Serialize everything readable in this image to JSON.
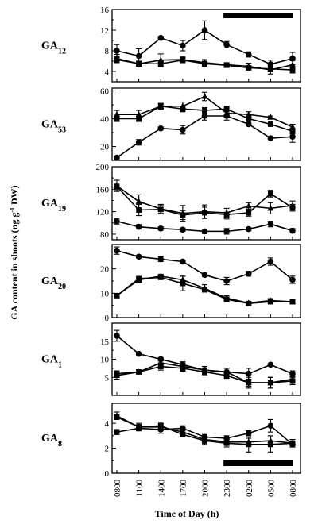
{
  "chart_data": {
    "type": "line",
    "xlabel": "Time of Day (h)",
    "ylabel": "GA content in shoots (ng g",
    "ylabel_sup": "-1",
    "ylabel_tail": " DW)",
    "x_ticks": [
      "0800",
      "1100",
      "1400",
      "1700",
      "2000",
      "2300",
      "0200",
      "0500",
      "0800"
    ],
    "dark_period": {
      "start": "2300",
      "end": "0800"
    },
    "panels": [
      {
        "label": "GA",
        "sub": "12",
        "ylim": [
          2,
          16
        ],
        "yticks": [
          "4",
          "8",
          "12",
          "16"
        ],
        "series": [
          {
            "marker": "circle",
            "values": [
              8.0,
              7.0,
              10.5,
              9.0,
              12.0,
              9.2,
              7.3,
              5.4,
              6.5
            ],
            "errors": [
              1.2,
              1.4,
              0.3,
              1.0,
              1.8,
              0.6,
              0.5,
              0.8,
              1.2
            ]
          },
          {
            "marker": "triangle",
            "values": [
              6.5,
              5.5,
              6.2,
              6.3,
              5.7,
              5.3,
              5.0,
              4.3,
              5.3
            ],
            "errors": [
              0.8,
              0.5,
              1.2,
              0.6,
              0.6,
              0.4,
              0.6,
              0.8,
              0.8
            ]
          },
          {
            "marker": "square",
            "values": [
              6.3,
              5.5,
              5.5,
              6.2,
              5.5,
              5.2,
              4.7,
              4.5,
              4.3
            ],
            "errors": [
              0.5,
              0.4,
              0.6,
              0.5,
              0.5,
              0.4,
              0.4,
              0.5,
              0.6
            ]
          }
        ]
      },
      {
        "label": "GA",
        "sub": "53",
        "ylim": [
          10,
          62
        ],
        "yticks": [
          "20",
          "40",
          "60"
        ],
        "series": [
          {
            "marker": "circle",
            "values": [
              12,
              23,
              33,
              32,
              42,
              42,
              36,
              26,
              27
            ],
            "errors": [
              1,
              2,
              1,
              3,
              3,
              3,
              1,
              1,
              4
            ]
          },
          {
            "marker": "triangle",
            "values": [
              43,
              43,
              49,
              49,
              56,
              44,
              43,
              41,
              34
            ],
            "errors": [
              3,
              3,
              2,
              3,
              3,
              3,
              2,
              1,
              2
            ]
          },
          {
            "marker": "square",
            "values": [
              40,
              40,
              49,
              47,
              46,
              47,
              40,
              36,
              31
            ],
            "errors": [
              2,
              2,
              2,
              2,
              2,
              2,
              2,
              1,
              2
            ]
          }
        ]
      },
      {
        "label": "GA",
        "sub": "19",
        "ylim": [
          70,
          200
        ],
        "yticks": [
          "80",
          "120",
          "160",
          "200"
        ],
        "series": [
          {
            "marker": "circle",
            "values": [
              103,
              93,
              90,
              88,
              85,
              85,
              89,
              98,
              86
            ],
            "errors": [
              5,
              4,
              3,
              3,
              4,
              5,
              3,
              5,
              4
            ]
          },
          {
            "marker": "triangle",
            "values": [
              166,
              138,
              125,
              117,
              120,
              118,
              130,
              126,
              131
            ],
            "errors": [
              10,
              12,
              8,
              14,
              12,
              8,
              6,
              10,
              8
            ]
          },
          {
            "marker": "square",
            "values": [
              165,
              123,
              124,
              114,
              118,
              115,
              118,
              152,
              127
            ],
            "errors": [
              6,
              10,
              8,
              8,
              10,
              8,
              6,
              6,
              6
            ]
          }
        ]
      },
      {
        "label": "GA",
        "sub": "20",
        "ylim": [
          0,
          30
        ],
        "yticks": [
          "0",
          "10",
          "20"
        ],
        "series": [
          {
            "marker": "circle",
            "values": [
              27.5,
              25,
              24,
              23,
              17.5,
              15,
              18,
              23,
              15.5
            ],
            "errors": [
              1.5,
              0.5,
              1,
              0.5,
              0.7,
              1.5,
              1,
              1.5,
              1.5
            ]
          },
          {
            "marker": "triangle",
            "values": [
              9,
              15.5,
              17,
              15.5,
              12,
              8,
              6,
              7,
              6.5
            ],
            "errors": [
              0.5,
              1,
              0.8,
              1.5,
              1.5,
              1,
              0.5,
              0.8,
              0.5
            ]
          },
          {
            "marker": "square",
            "values": [
              9,
              16,
              16.5,
              14,
              11.5,
              7.5,
              5.8,
              6.5,
              6.5
            ],
            "errors": [
              0.5,
              0.6,
              0.8,
              3,
              1,
              1,
              0.5,
              0.8,
              0.5
            ]
          }
        ]
      },
      {
        "label": "GA",
        "sub": "1",
        "ylim": [
          0,
          20
        ],
        "yticks": [
          "5",
          "10",
          "15"
        ],
        "series": [
          {
            "marker": "circle",
            "values": [
              16.5,
              11.5,
              10,
              8.5,
              7,
              6.5,
              6,
              8.5,
              6
            ],
            "errors": [
              1.5,
              0.3,
              0.5,
              0.8,
              1,
              1,
              1.5,
              0.3,
              0.8
            ]
          },
          {
            "marker": "triangle",
            "values": [
              5.5,
              6.5,
              9,
              8,
              7,
              6.5,
              3.5,
              3.5,
              4.5
            ],
            "errors": [
              1,
              0.6,
              1,
              1,
              1,
              1,
              1.5,
              1.5,
              1.5
            ]
          },
          {
            "marker": "square",
            "values": [
              6,
              6.5,
              8,
              7.5,
              6.5,
              5.5,
              3.5,
              3.5,
              4
            ],
            "errors": [
              0.8,
              0.5,
              1,
              0.8,
              0.8,
              0.8,
              1,
              1.5,
              1
            ]
          }
        ]
      },
      {
        "label": "GA",
        "sub": "8",
        "ylim": [
          0,
          5.6
        ],
        "yticks": [
          "0",
          "2",
          "4"
        ],
        "series": [
          {
            "marker": "circle",
            "values": [
              3.3,
              3.6,
              3.5,
              3.6,
              2.9,
              2.8,
              3.2,
              3.8,
              2.3
            ],
            "errors": [
              0.2,
              0.2,
              0.3,
              0.2,
              0.2,
              0.2,
              0.2,
              0.5,
              0.2
            ]
          },
          {
            "marker": "triangle",
            "values": [
              4.6,
              3.7,
              3.7,
              3.3,
              2.7,
              2.5,
              2.5,
              2.6,
              2.4
            ],
            "errors": [
              0.3,
              0.3,
              0.3,
              0.3,
              0.3,
              0.2,
              0.3,
              0.4,
              0.3
            ]
          },
          {
            "marker": "square",
            "values": [
              4.5,
              3.7,
              3.8,
              3.1,
              2.6,
              2.4,
              2.3,
              2.3,
              2.4
            ],
            "errors": [
              0.2,
              0.2,
              0.3,
              0.2,
              0.3,
              0.3,
              0.6,
              0.6,
              0.3
            ]
          }
        ]
      }
    ]
  }
}
